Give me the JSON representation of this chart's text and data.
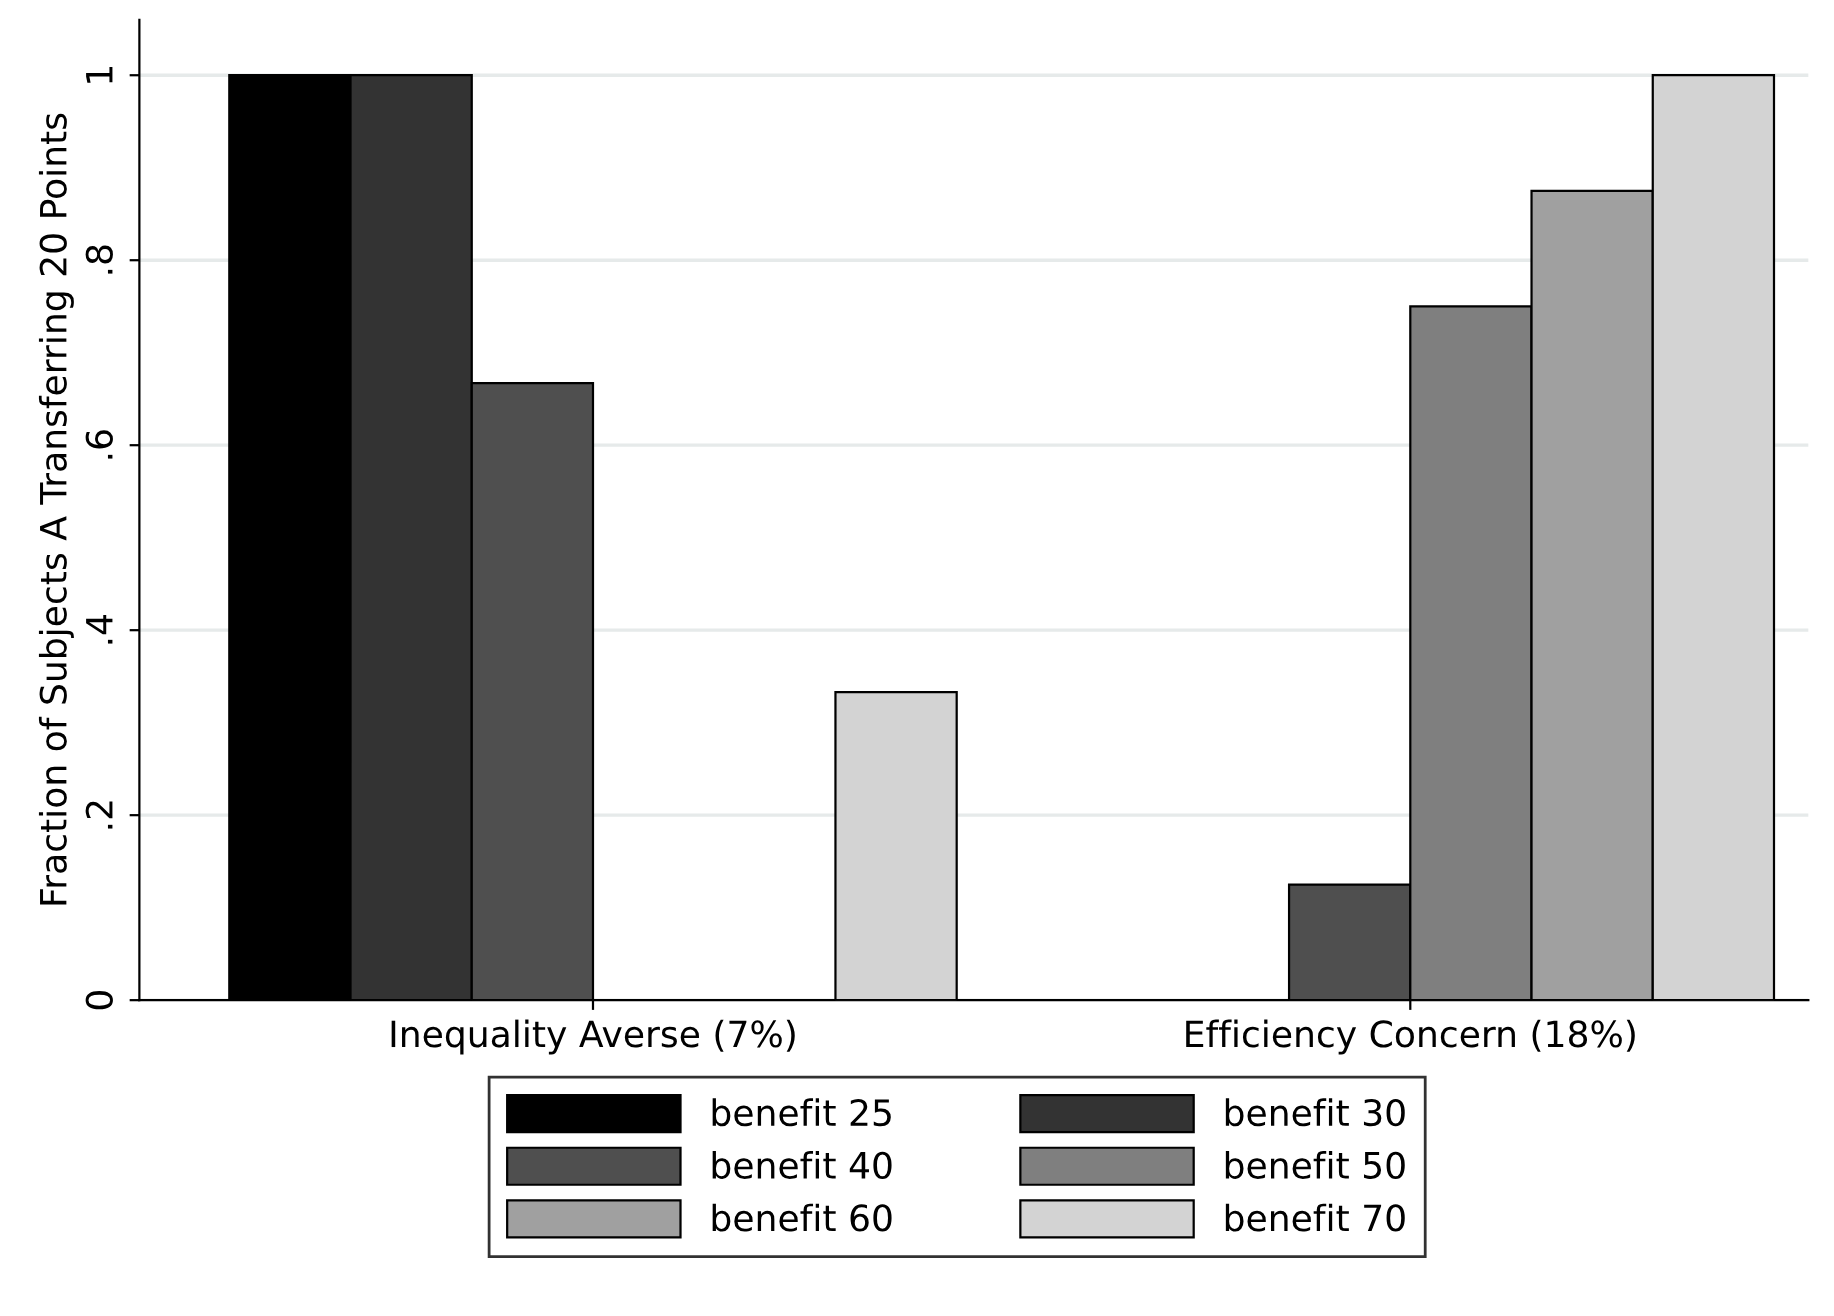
{
  "chart_data": {
    "type": "bar",
    "ylabel": "Fraction of Subjects A Transferring 20 Points",
    "categories": [
      "Inequality Averse (7%)",
      "Efficiency Concern (18%)"
    ],
    "series": [
      {
        "name": "benefit 25",
        "color": "#000000",
        "values": [
          1,
          0
        ]
      },
      {
        "name": "benefit 30",
        "color": "#333333",
        "values": [
          1,
          0
        ]
      },
      {
        "name": "benefit 40",
        "color": "#4f4f4f",
        "values": [
          0.667,
          0.125
        ]
      },
      {
        "name": "benefit 50",
        "color": "#7f7f7f",
        "values": [
          0,
          0.75
        ]
      },
      {
        "name": "benefit 60",
        "color": "#a0a0a0",
        "values": [
          0,
          0.875
        ]
      },
      {
        "name": "benefit 70",
        "color": "#d3d3d3",
        "values": [
          0.333,
          1
        ]
      }
    ],
    "ylim": [
      0,
      1.06
    ],
    "yticks": [
      0,
      {
        "value": 0.2,
        "label": ".2"
      },
      {
        "value": 0.4,
        "label": ".4"
      },
      {
        "value": 0.6,
        "label": ".6"
      },
      {
        "value": 0.8,
        "label": ".8"
      },
      1
    ],
    "grid": "y",
    "legend": "bottom"
  }
}
